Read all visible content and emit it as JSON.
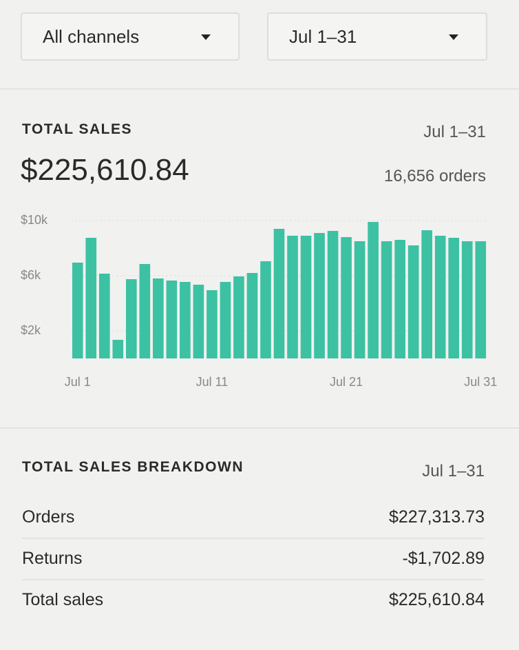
{
  "filters": {
    "channel": "All channels",
    "date_range": "Jul 1–31"
  },
  "summary": {
    "title": "TOTAL SALES",
    "period": "Jul 1–31",
    "total": "$225,610.84",
    "orders": "16,656 orders"
  },
  "chart_data": {
    "type": "bar",
    "categories": [
      "Jul 1",
      null,
      null,
      null,
      null,
      null,
      null,
      null,
      null,
      null,
      "Jul 11",
      null,
      null,
      null,
      null,
      null,
      null,
      null,
      null,
      null,
      "Jul 21",
      null,
      null,
      null,
      null,
      null,
      null,
      null,
      null,
      null,
      "Jul 31"
    ],
    "values": [
      6950,
      8750,
      6150,
      1350,
      5750,
      6850,
      5800,
      5650,
      5550,
      5350,
      4950,
      5550,
      5950,
      6200,
      7050,
      9400,
      8900,
      8900,
      9100,
      9250,
      8800,
      8500,
      9900,
      8500,
      8600,
      8200,
      9300,
      8900,
      8750,
      8500,
      8500
    ],
    "color": "#3cc1a3",
    "ylim": [
      0,
      10500
    ],
    "yticks": [
      {
        "value": 2000,
        "label": "$2k"
      },
      {
        "value": 6000,
        "label": "$6k"
      },
      {
        "value": 10000,
        "label": "$10k"
      }
    ],
    "grid": true
  },
  "breakdown": {
    "title": "TOTAL SALES BREAKDOWN",
    "period": "Jul 1–31",
    "rows": [
      [
        "Orders",
        "$227,313.73"
      ],
      [
        "Returns",
        "-$1,702.89"
      ],
      [
        "Total sales",
        "$225,610.84"
      ]
    ]
  }
}
